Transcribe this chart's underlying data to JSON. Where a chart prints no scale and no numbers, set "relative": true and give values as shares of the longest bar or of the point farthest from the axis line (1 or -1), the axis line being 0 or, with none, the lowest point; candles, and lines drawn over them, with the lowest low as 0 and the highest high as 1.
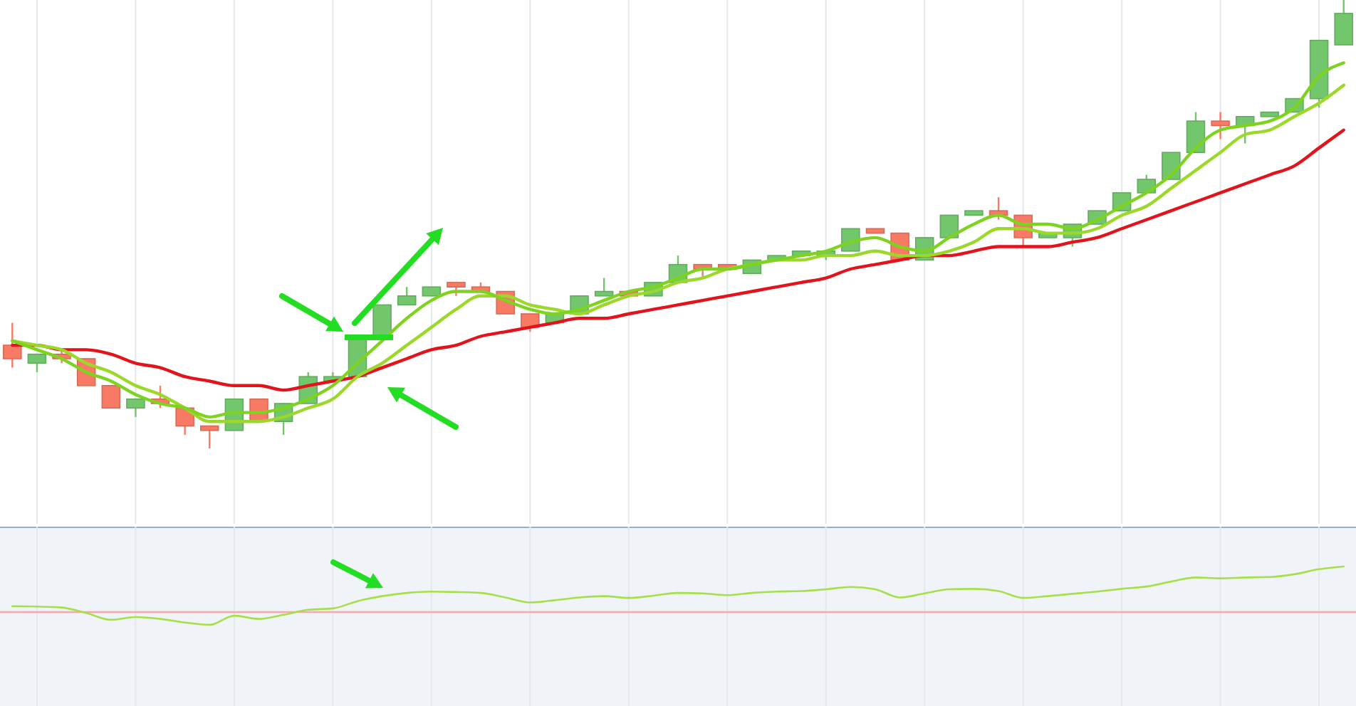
{
  "chart_data": [
    {
      "type": "candlestick",
      "relative": true,
      "grid": "x",
      "categories": [
        null,
        null,
        null,
        null,
        null,
        null,
        null,
        null,
        null,
        null,
        null,
        null,
        null,
        null,
        null,
        null,
        null,
        null,
        null,
        null,
        null,
        null,
        null,
        null,
        null,
        null,
        null,
        null,
        null,
        null,
        null,
        null,
        null,
        null,
        null,
        null,
        null,
        null,
        null,
        null,
        null,
        null,
        null,
        null,
        null,
        null,
        null,
        null,
        null,
        null,
        null,
        null,
        null,
        null,
        null
      ],
      "ohlc": [
        [
          0.23,
          0.28,
          0.18,
          0.2
        ],
        [
          0.19,
          0.21,
          0.17,
          0.21
        ],
        [
          0.21,
          0.22,
          0.19,
          0.2
        ],
        [
          0.2,
          0.2,
          0.14,
          0.14
        ],
        [
          0.14,
          0.14,
          0.09,
          0.09
        ],
        [
          0.09,
          0.11,
          0.07,
          0.11
        ],
        [
          0.11,
          0.14,
          0.09,
          0.1
        ],
        [
          0.09,
          0.09,
          0.03,
          0.05
        ],
        [
          0.05,
          0.05,
          0,
          0.04
        ],
        [
          0.04,
          0.11,
          0.04,
          0.11
        ],
        [
          0.11,
          0.11,
          0.06,
          0.06
        ],
        [
          0.06,
          0.1,
          0.03,
          0.1
        ],
        [
          0.1,
          0.17,
          0.1,
          0.16
        ],
        [
          0.15,
          0.17,
          0.15,
          0.16
        ],
        [
          0.16,
          0.25,
          0.16,
          0.25
        ],
        [
          0.25,
          0.32,
          0.25,
          0.32
        ],
        [
          0.32,
          0.36,
          0.32,
          0.34
        ],
        [
          0.34,
          0.36,
          0.34,
          0.36
        ],
        [
          0.37,
          0.37,
          0.34,
          0.36
        ],
        [
          0.36,
          0.37,
          0.35,
          0.35
        ],
        [
          0.35,
          0.35,
          0.3,
          0.3
        ],
        [
          0.3,
          0.3,
          0.26,
          0.27
        ],
        [
          0.28,
          0.3,
          0.28,
          0.3
        ],
        [
          0.3,
          0.34,
          0.3,
          0.34
        ],
        [
          0.34,
          0.38,
          0.34,
          0.35
        ],
        [
          0.35,
          0.35,
          0.34,
          0.34
        ],
        [
          0.34,
          0.37,
          0.34,
          0.37
        ],
        [
          0.37,
          0.43,
          0.37,
          0.41
        ],
        [
          0.41,
          0.41,
          0.38,
          0.4
        ],
        [
          0.41,
          0.41,
          0.4,
          0.4
        ],
        [
          0.39,
          0.42,
          0.39,
          0.42
        ],
        [
          0.42,
          0.43,
          0.42,
          0.43
        ],
        [
          0.43,
          0.44,
          0.43,
          0.44
        ],
        [
          0.43,
          0.44,
          0.42,
          0.44
        ],
        [
          0.44,
          0.49,
          0.44,
          0.49
        ],
        [
          0.49,
          0.49,
          0.48,
          0.48
        ],
        [
          0.48,
          0.48,
          0.42,
          0.42
        ],
        [
          0.42,
          0.47,
          0.42,
          0.47
        ],
        [
          0.47,
          0.52,
          0.47,
          0.52
        ],
        [
          0.52,
          0.53,
          0.52,
          0.53
        ],
        [
          0.53,
          0.56,
          0.51,
          0.52
        ],
        [
          0.52,
          0.52,
          0.45,
          0.47
        ],
        [
          0.47,
          0.48,
          0.47,
          0.48
        ],
        [
          0.47,
          0.5,
          0.45,
          0.5
        ],
        [
          0.5,
          0.53,
          0.5,
          0.53
        ],
        [
          0.53,
          0.57,
          0.53,
          0.57
        ],
        [
          0.57,
          0.61,
          0.57,
          0.6
        ],
        [
          0.6,
          0.66,
          0.6,
          0.66
        ],
        [
          0.66,
          0.75,
          0.66,
          0.73
        ],
        [
          0.73,
          0.75,
          0.69,
          0.72
        ],
        [
          0.72,
          0.74,
          0.68,
          0.74
        ],
        [
          0.74,
          0.75,
          0.74,
          0.75
        ],
        [
          0.75,
          0.78,
          0.75,
          0.78
        ],
        [
          0.78,
          0.91,
          0.76,
          0.91
        ],
        [
          0.9,
          1,
          0.9,
          0.97
        ]
      ],
      "colors": [
        "#f87a64",
        "#72c66c",
        "#f87a64",
        "#f87a64",
        "#f87a64",
        "#72c66c",
        "#f87a64",
        "#f87a64",
        "#f87a64",
        "#72c66c",
        "#f87a64",
        "#72c66c",
        "#72c66c",
        "#72c66c",
        "#72c66c",
        "#72c66c",
        "#72c66c",
        "#72c66c",
        "#f87a64",
        "#f87a64",
        "#f87a64",
        "#f87a64",
        "#72c66c",
        "#72c66c",
        "#72c66c",
        "#f87a64",
        "#72c66c",
        "#72c66c",
        "#f87a64",
        "#f87a64",
        "#72c66c",
        "#72c66c",
        "#72c66c",
        "#72c66c",
        "#72c66c",
        "#f87a64",
        "#f87a64",
        "#72c66c",
        "#72c66c",
        "#72c66c",
        "#f87a64",
        "#f87a64",
        "#72c66c",
        "#72c66c",
        "#72c66c",
        "#72c66c",
        "#72c66c",
        "#72c66c",
        "#72c66c",
        "#f87a64",
        "#72c66c",
        "#72c66c",
        "#72c66c",
        "#72c66c",
        "#72c66c"
      ],
      "series": [
        {
          "type": "line",
          "color": "#e3131b",
          "values": [
            0.23,
            0.23,
            0.22,
            0.22,
            0.21,
            0.19,
            0.18,
            0.16,
            0.15,
            0.14,
            0.14,
            0.13,
            0.14,
            0.15,
            0.16,
            0.18,
            0.2,
            0.22,
            0.23,
            0.25,
            0.26,
            0.27,
            0.28,
            0.29,
            0.29,
            0.3,
            0.31,
            0.32,
            0.33,
            0.34,
            0.35,
            0.36,
            0.37,
            0.38,
            0.4,
            0.41,
            0.42,
            0.43,
            0.43,
            0.44,
            0.45,
            0.45,
            0.45,
            0.46,
            0.47,
            0.49,
            0.51,
            0.53,
            0.55,
            0.57,
            0.59,
            0.61,
            0.63,
            0.67,
            0.71
          ]
        },
        {
          "type": "line",
          "color": "#9bd82a",
          "values": [
            0.24,
            0.23,
            0.22,
            0.19,
            0.17,
            0.14,
            0.12,
            0.09,
            0.06,
            0.06,
            0.06,
            0.07,
            0.09,
            0.11,
            0.16,
            0.19,
            0.23,
            0.27,
            0.31,
            0.34,
            0.34,
            0.32,
            0.31,
            0.3,
            0.32,
            0.34,
            0.35,
            0.37,
            0.38,
            0.4,
            0.41,
            0.42,
            0.42,
            0.43,
            0.43,
            0.44,
            0.43,
            0.43,
            0.44,
            0.46,
            0.49,
            0.49,
            0.48,
            0.48,
            0.49,
            0.52,
            0.54,
            0.58,
            0.62,
            0.66,
            0.7,
            0.71,
            0.74,
            0.77,
            0.81
          ]
        },
        {
          "type": "line",
          "color": "#7ed321",
          "values": [
            0.24,
            0.22,
            0.2,
            0.17,
            0.15,
            0.12,
            0.1,
            0.09,
            0.07,
            0.08,
            0.08,
            0.09,
            0.11,
            0.14,
            0.19,
            0.24,
            0.29,
            0.33,
            0.35,
            0.35,
            0.33,
            0.31,
            0.3,
            0.31,
            0.33,
            0.35,
            0.36,
            0.38,
            0.4,
            0.4,
            0.41,
            0.42,
            0.43,
            0.44,
            0.46,
            0.47,
            0.45,
            0.44,
            0.47,
            0.5,
            0.52,
            0.5,
            0.5,
            0.49,
            0.51,
            0.54,
            0.57,
            0.61,
            0.67,
            0.71,
            0.72,
            0.73,
            0.76,
            0.83,
            0.86
          ]
        }
      ]
    },
    {
      "type": "line",
      "relative": true,
      "grid": "x",
      "categories": [
        null,
        null,
        null,
        null,
        null,
        null,
        null,
        null,
        null,
        null,
        null,
        null,
        null,
        null,
        null,
        null,
        null,
        null,
        null,
        null,
        null,
        null,
        null,
        null,
        null,
        null,
        null,
        null,
        null,
        null,
        null,
        null,
        null,
        null,
        null,
        null,
        null,
        null,
        null,
        null,
        null,
        null,
        null,
        null,
        null,
        null,
        null,
        null,
        null,
        null,
        null,
        null,
        null,
        null,
        null
      ],
      "ref_lines": [
        {
          "axis": "y",
          "value": 0,
          "color": "#f7a8a8"
        }
      ],
      "series": [
        {
          "color": "#a5e04a",
          "values": [
            0.13,
            0.12,
            0.1,
            -0.02,
            -0.17,
            -0.11,
            -0.15,
            -0.23,
            -0.28,
            -0.08,
            -0.15,
            -0.06,
            0.05,
            0.08,
            0.24,
            0.35,
            0.42,
            0.45,
            0.44,
            0.42,
            0.32,
            0.21,
            0.26,
            0.32,
            0.35,
            0.31,
            0.36,
            0.42,
            0.41,
            0.37,
            0.42,
            0.45,
            0.46,
            0.5,
            0.55,
            0.5,
            0.32,
            0.41,
            0.5,
            0.51,
            0.46,
            0.31,
            0.35,
            0.4,
            0.45,
            0.51,
            0.56,
            0.67,
            0.76,
            0.74,
            0.76,
            0.77,
            0.83,
            0.94,
            1
          ]
        }
      ]
    }
  ]
}
